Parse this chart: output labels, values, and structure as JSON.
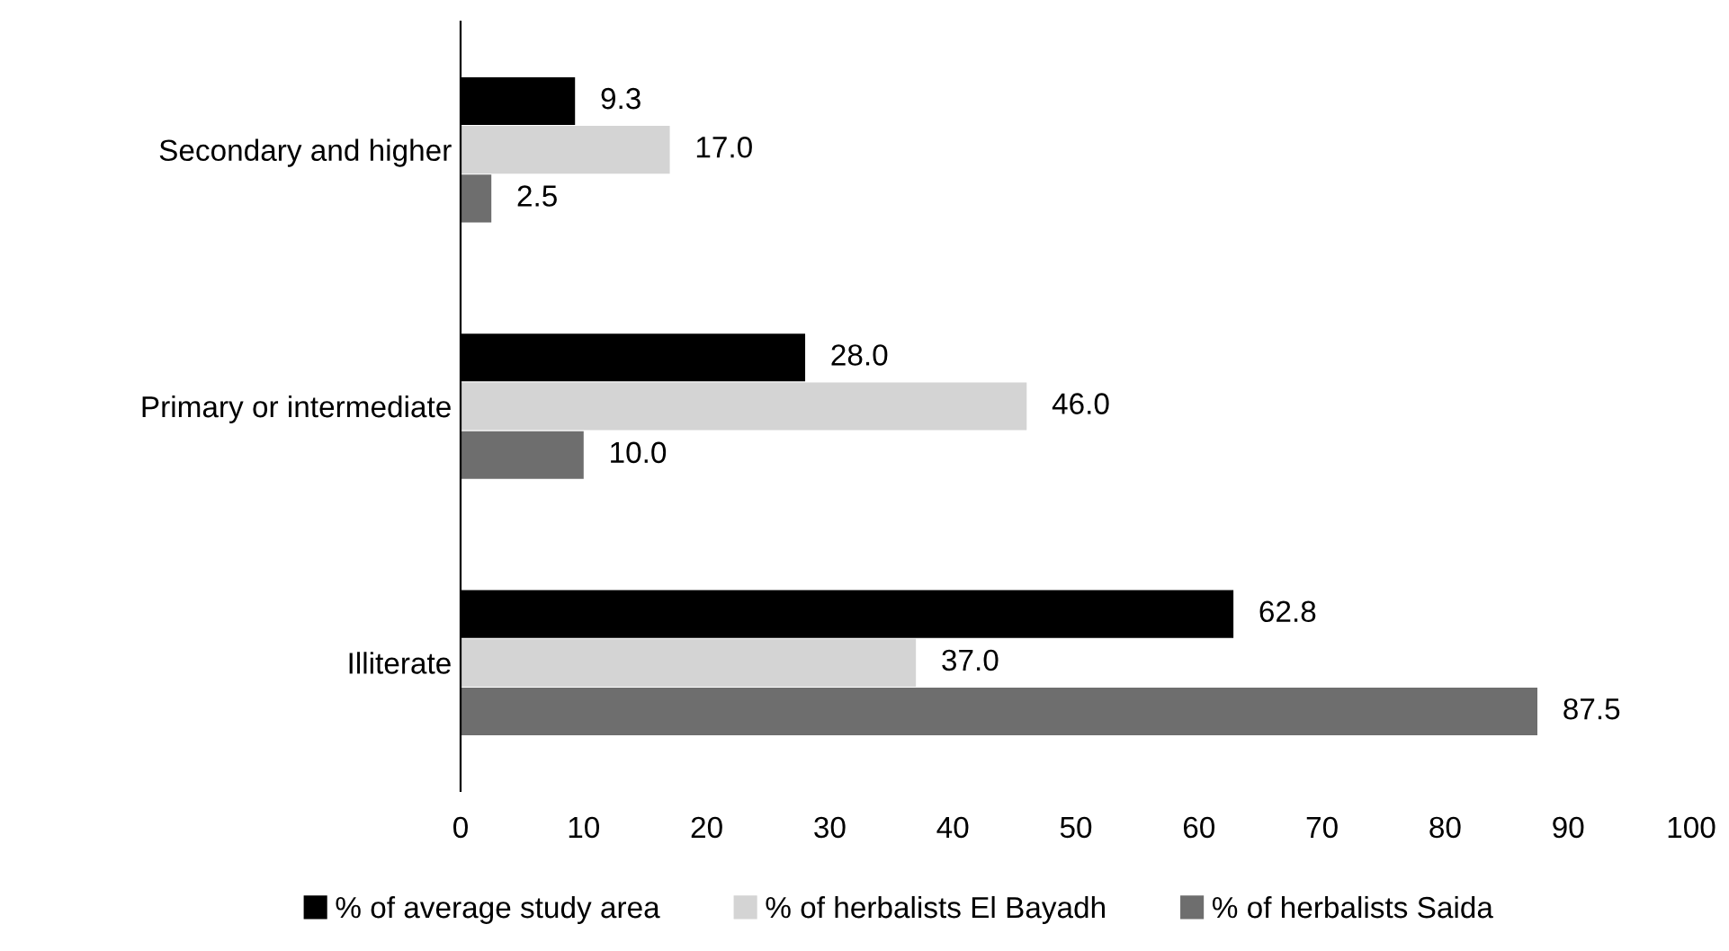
{
  "chart_data": {
    "type": "bar",
    "orientation": "horizontal",
    "categories": [
      "Secondary and higher",
      "Primary or intermediate",
      "Illiterate"
    ],
    "series": [
      {
        "name": "% of average study area",
        "color": "#000000",
        "values": [
          9.3,
          28.0,
          62.8
        ],
        "value_labels": [
          "9.3",
          "28.0",
          "62.8"
        ]
      },
      {
        "name": "% of herbalists El Bayadh",
        "color": "#d4d4d4",
        "values": [
          17.0,
          46.0,
          37.0
        ],
        "value_labels": [
          "17.0",
          "46.0",
          "37.0"
        ]
      },
      {
        "name": "% of herbalists Saida",
        "color": "#6e6e6e",
        "values": [
          2.5,
          10.0,
          87.5
        ],
        "value_labels": [
          "2.5",
          "10.0",
          "87.5"
        ]
      }
    ],
    "xlim": [
      0,
      100
    ],
    "xticks": [
      0,
      10,
      20,
      30,
      40,
      50,
      60,
      70,
      80,
      90,
      100
    ],
    "grid": false,
    "legend": "bottom"
  }
}
